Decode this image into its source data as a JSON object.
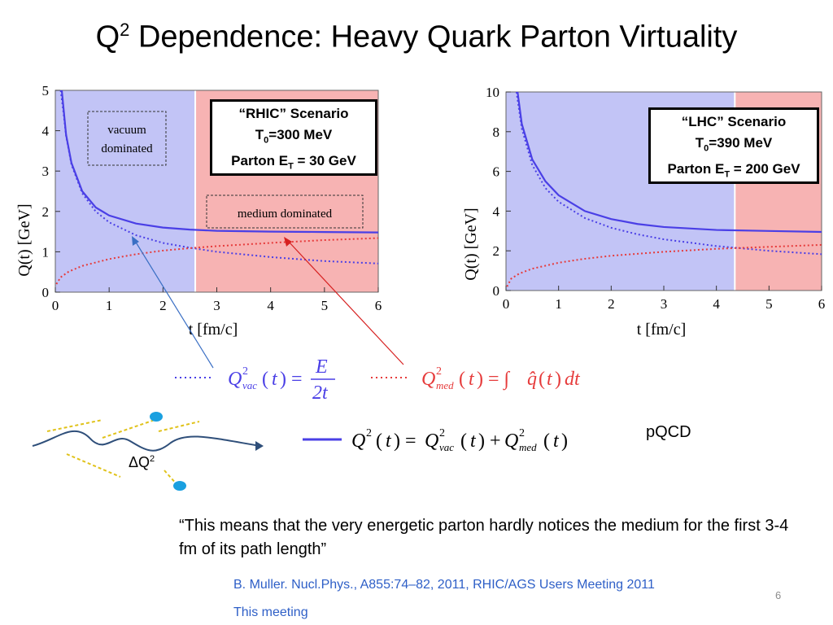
{
  "slide": {
    "title_main": "Q",
    "title_sup": "2",
    "title_rest": " Dependence: Heavy Quark Parton Virtuality",
    "quote": "“This means that the very energetic parton hardly notices the medium for the first 3-4 fm of its path length”",
    "pqcd": "pQCD",
    "delta_q": "ΔQ",
    "delta_q_sup": "2",
    "reference": "B. Muller. Nucl.Phys., A855:74–82, 2011, RHIC/AGS Users Meeting 2011",
    "this_meeting": "This meeting",
    "page_number": "6"
  },
  "equations": {
    "vac": "Q²vac(t) = E / 2t",
    "med": "Q²med(t) = ∫ q̂(t) dt",
    "total": "Q²(t) = Q²vac(t) + Q²med(t)"
  },
  "scenarios": {
    "rhic": {
      "title": "“RHIC” Scenario",
      "t0": "=300 MeV",
      "et": " = 30 GeV"
    },
    "lhc": {
      "title": "“LHC” Scenario",
      "t0": "=390 MeV",
      "et": " = 200 GeV"
    }
  },
  "colors": {
    "vacuum_region": "#c2c4f6",
    "medium_region": "#f7b3b3",
    "vac_curve": "#4a3fe6",
    "med_curve": "#e63b3b",
    "total_curve": "#4a3fe6",
    "reference": "#2e5fc7"
  },
  "chart_data": [
    {
      "type": "line",
      "title": "",
      "xlabel": "t [fm/c]",
      "ylabel": "Q(t) [GeV]",
      "xlim": [
        0,
        6
      ],
      "ylim": [
        0,
        5
      ],
      "xticks": [
        0,
        1,
        2,
        3,
        4,
        5,
        6
      ],
      "yticks": [
        0,
        1,
        2,
        3,
        4,
        5
      ],
      "regions": [
        {
          "label": "vacuum dominated",
          "from": 0,
          "to": 2.6
        },
        {
          "label": "medium dominated",
          "from": 2.6,
          "to": 6
        }
      ],
      "series": [
        {
          "style": "dotted",
          "color": "blue",
          "x": [
            0.1,
            0.15,
            0.2,
            0.3,
            0.5,
            0.75,
            1.0,
            1.5,
            2.0,
            2.5,
            3.0,
            4.0,
            5.0,
            6.0
          ],
          "y": [
            5.0,
            4.47,
            3.87,
            3.16,
            2.45,
            2.0,
            1.73,
            1.41,
            1.22,
            1.1,
            1.0,
            0.87,
            0.77,
            0.71
          ]
        },
        {
          "style": "dotted",
          "color": "red",
          "x": [
            0.02,
            0.1,
            0.25,
            0.5,
            1.0,
            1.5,
            2.0,
            2.5,
            3.0,
            4.0,
            5.0,
            6.0
          ],
          "y": [
            0.2,
            0.37,
            0.51,
            0.65,
            0.82,
            0.94,
            1.03,
            1.09,
            1.14,
            1.22,
            1.29,
            1.34
          ]
        },
        {
          "style": "solid",
          "color": "blue",
          "x": [
            0.12,
            0.2,
            0.3,
            0.5,
            0.75,
            1.0,
            1.5,
            2.0,
            2.5,
            3.0,
            4.0,
            5.0,
            6.0
          ],
          "y": [
            5.0,
            3.9,
            3.2,
            2.5,
            2.1,
            1.9,
            1.7,
            1.6,
            1.55,
            1.52,
            1.5,
            1.49,
            1.48
          ]
        }
      ]
    },
    {
      "type": "line",
      "title": "",
      "xlabel": "t [fm/c]",
      "ylabel": "Q(t) [GeV]",
      "xlim": [
        0,
        6
      ],
      "ylim": [
        0,
        10
      ],
      "xticks": [
        0,
        1,
        2,
        3,
        4,
        5,
        6
      ],
      "yticks": [
        0,
        2,
        4,
        6,
        8,
        10
      ],
      "regions": [
        {
          "label": "",
          "from": 0,
          "to": 4.35
        },
        {
          "label": "",
          "from": 4.35,
          "to": 6
        }
      ],
      "series": [
        {
          "style": "dotted",
          "color": "blue",
          "x": [
            0.2,
            0.3,
            0.5,
            0.75,
            1.0,
            1.5,
            2.0,
            2.5,
            3.0,
            4.0,
            5.0,
            6.0
          ],
          "y": [
            10.0,
            8.16,
            6.32,
            5.16,
            4.47,
            3.65,
            3.16,
            2.83,
            2.58,
            2.24,
            2.0,
            1.83
          ]
        },
        {
          "style": "dotted",
          "color": "red",
          "x": [
            0.02,
            0.1,
            0.25,
            0.5,
            1.0,
            1.5,
            2.0,
            2.5,
            3.0,
            4.0,
            5.0,
            6.0
          ],
          "y": [
            0.2,
            0.6,
            0.85,
            1.1,
            1.4,
            1.6,
            1.75,
            1.85,
            1.95,
            2.1,
            2.2,
            2.3
          ]
        },
        {
          "style": "solid",
          "color": "blue",
          "x": [
            0.22,
            0.3,
            0.5,
            0.75,
            1.0,
            1.5,
            2.0,
            2.5,
            3.0,
            4.0,
            5.0,
            6.0
          ],
          "y": [
            10.0,
            8.4,
            6.6,
            5.5,
            4.8,
            4.0,
            3.6,
            3.35,
            3.2,
            3.05,
            3.0,
            2.95
          ]
        }
      ]
    }
  ]
}
